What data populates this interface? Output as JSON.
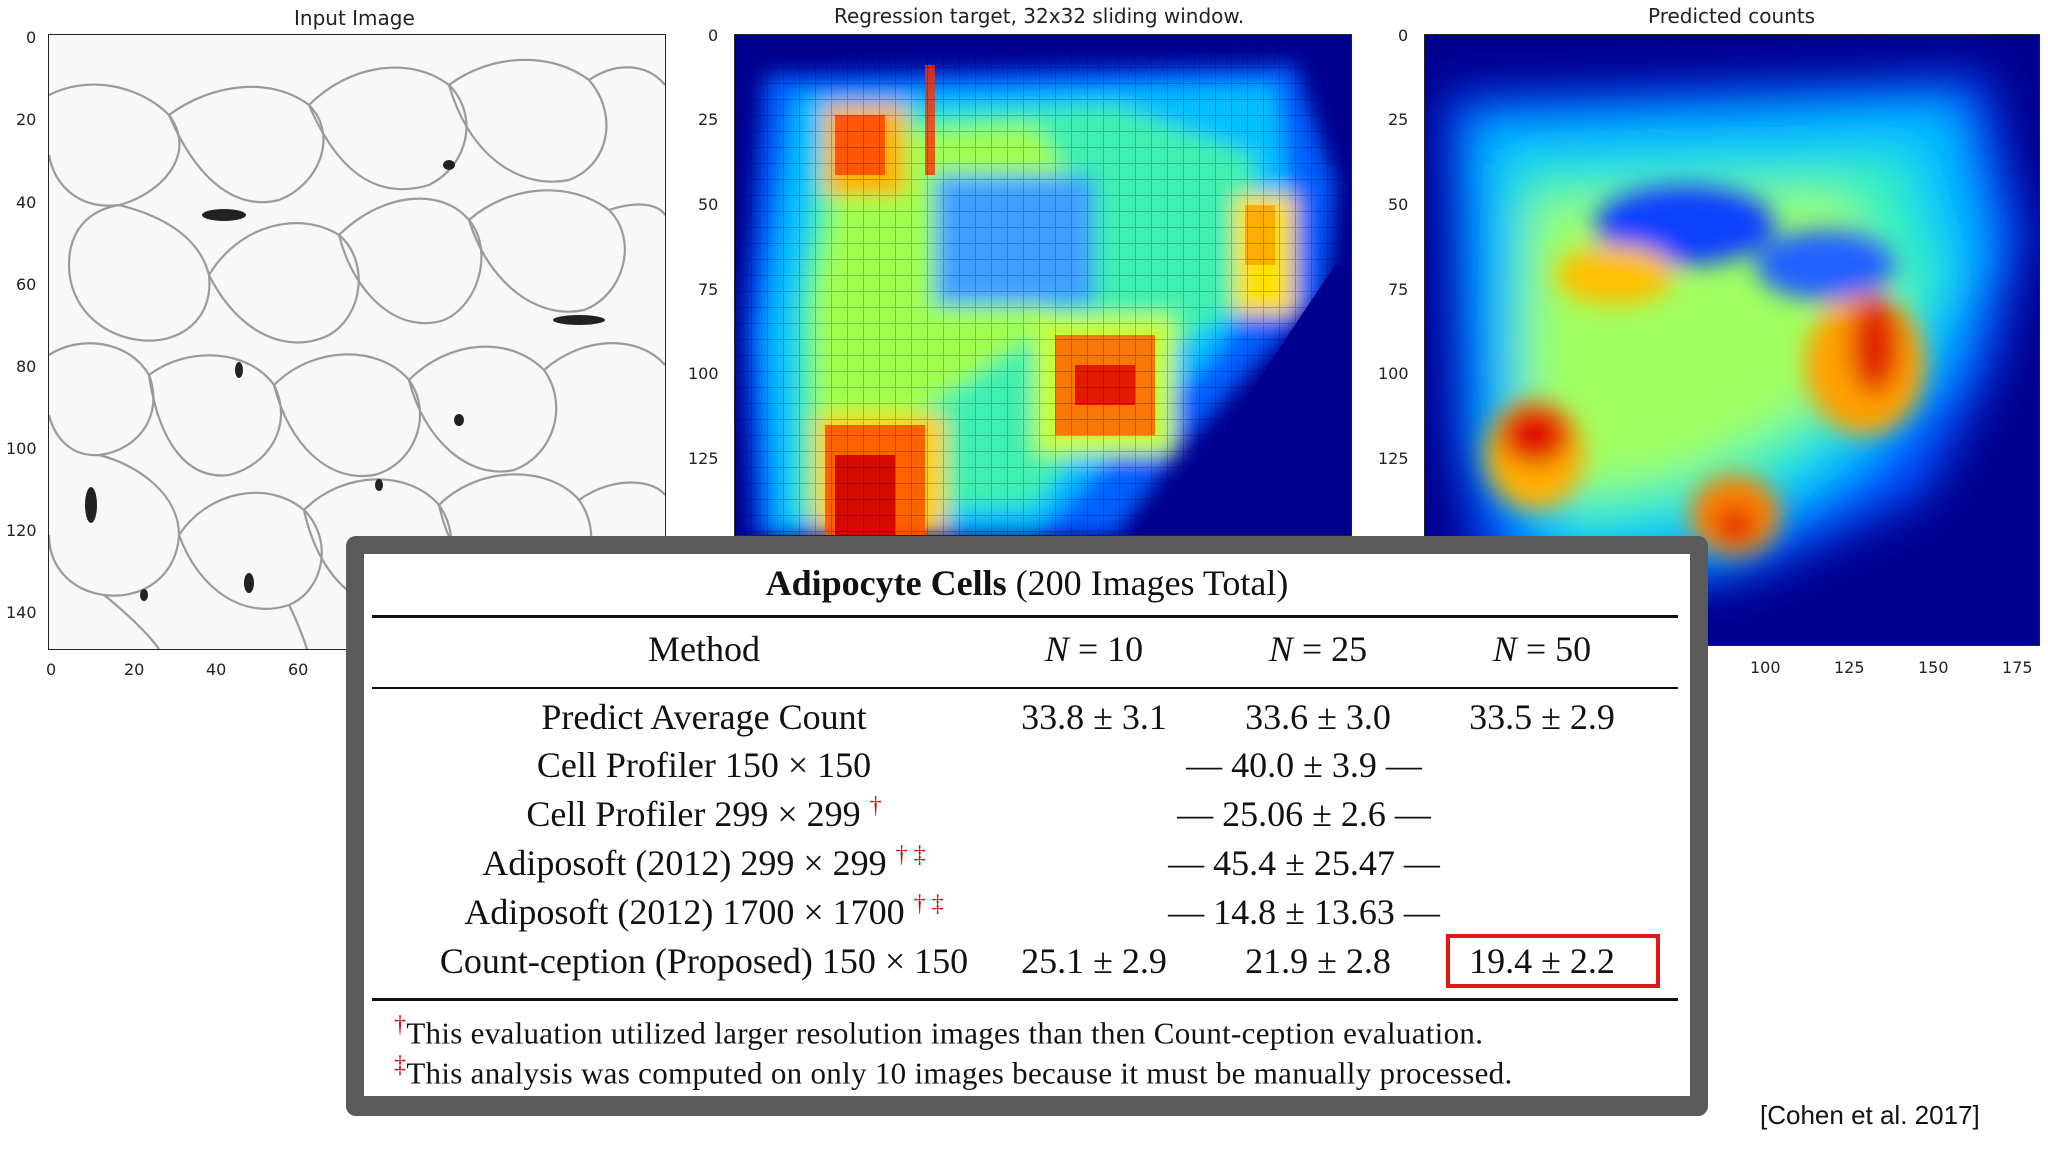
{
  "panels": {
    "input": {
      "title": "Input Image",
      "yticks": [
        "0",
        "20",
        "40",
        "60",
        "80",
        "100",
        "120",
        "140"
      ],
      "xticks": [
        "0",
        "20",
        "40",
        "60"
      ]
    },
    "target": {
      "title": "Regression target, 32x32 sliding window.",
      "yticks": [
        "0",
        "25",
        "50",
        "75",
        "100",
        "125"
      ]
    },
    "predicted": {
      "title": "Predicted counts",
      "yticks": [
        "0",
        "25",
        "50",
        "75",
        "100",
        "125"
      ],
      "xticks": [
        "100",
        "125",
        "150",
        "175"
      ]
    }
  },
  "table": {
    "title_bold": "Adipocyte Cells",
    "title_rest": " (200 Images Total)",
    "headers": {
      "method": "Method",
      "n10_var": "N",
      "n10_rest": " = 10",
      "n25_var": "N",
      "n25_rest": " = 25",
      "n50_var": "N",
      "n50_rest": " = 50"
    },
    "rows": [
      {
        "method": "Predict Average Count",
        "marks": "",
        "n10": "33.8 ± 3.1",
        "n25": "33.6 ± 3.0",
        "n50": "33.5 ± 2.9"
      },
      {
        "method": "Cell Profiler 150 × 150",
        "marks": "",
        "span": "— 40.0 ± 3.9 —"
      },
      {
        "method": "Cell Profiler 299 × 299",
        "marks": "†",
        "span": "— 25.06 ± 2.6 —"
      },
      {
        "method": "Adiposoft (2012) 299 × 299",
        "marks": "† ‡",
        "span": "— 45.4 ± 25.47 —"
      },
      {
        "method": "Adiposoft (2012) 1700 × 1700",
        "marks": "† ‡",
        "span": "— 14.8 ± 13.63 —"
      },
      {
        "method": "Count-ception (Proposed) 150 × 150",
        "marks": "",
        "n10": "25.1 ± 2.9",
        "n25": "21.9 ± 2.8",
        "n50": "19.4 ± 2.2"
      }
    ],
    "notes": [
      {
        "mark": "†",
        "text": "This evaluation utilized larger resolution images than then Count-ception evaluation."
      },
      {
        "mark": "‡",
        "text": "This analysis was computed on only 10 images because it must be manually processed."
      }
    ]
  },
  "citation": "[Cohen et al. 2017]",
  "colors": {
    "highlight": "#e01818",
    "dagger": "#d01010",
    "card": "#5a5a5a"
  }
}
